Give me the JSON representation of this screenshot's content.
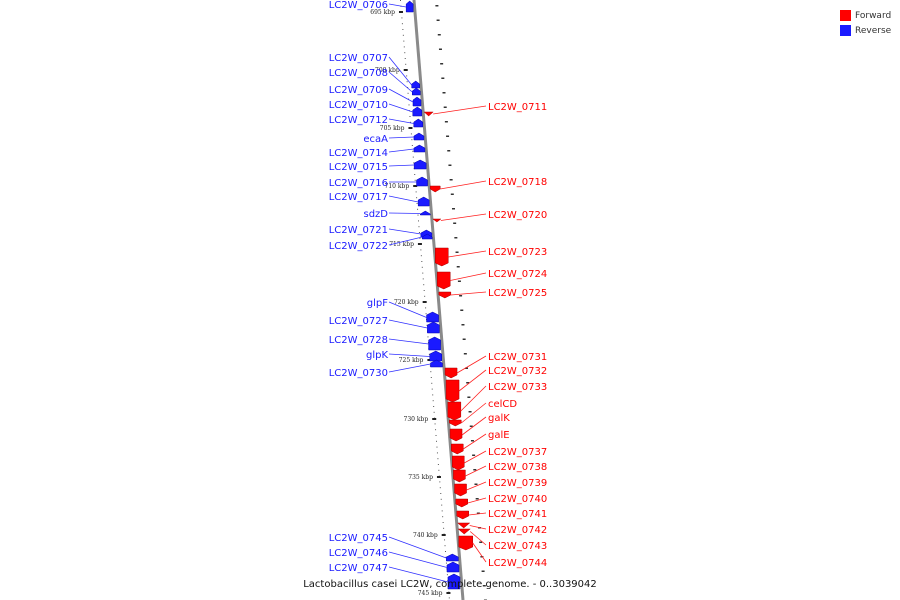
{
  "caption": "Lactobacillus casei LC2W, complete genome. - 0..3039042",
  "legend": [
    {
      "label": "Forward",
      "color": "#ff0000"
    },
    {
      "label": "Reverse",
      "color": "#1a1aff"
    }
  ],
  "colors": {
    "forward": "#ff0000",
    "reverse": "#1a1aff",
    "axis": "#888888"
  },
  "ticks": [
    "695 kbp",
    "700 kbp",
    "705 kbp",
    "710 kbp",
    "715 kbp",
    "720 kbp",
    "725 kbp",
    "730 kbp",
    "735 kbp",
    "740 kbp",
    "745 kbp"
  ],
  "reverse_genes": [
    "LC2W_0706",
    "LC2W_0707",
    "LC2W_0708",
    "LC2W_0709",
    "LC2W_0710",
    "LC2W_0712",
    "ecaA",
    "LC2W_0714",
    "LC2W_0715",
    "LC2W_0716",
    "LC2W_0717",
    "sdzD",
    "LC2W_0721",
    "LC2W_0722",
    "glpF",
    "LC2W_0727",
    "LC2W_0728",
    "glpK",
    "LC2W_0730",
    "LC2W_0745",
    "LC2W_0746",
    "LC2W_0747"
  ],
  "forward_genes": [
    "LC2W_0711",
    "LC2W_0718",
    "LC2W_0720",
    "LC2W_0723",
    "LC2W_0724",
    "LC2W_0725",
    "LC2W_0731",
    "LC2W_0732",
    "LC2W_0733",
    "celCD",
    "galK",
    "galE",
    "LC2W_0737",
    "LC2W_0738",
    "LC2W_0739",
    "LC2W_0740",
    "LC2W_0741",
    "LC2W_0742",
    "LC2W_0743",
    "LC2W_0744"
  ]
}
